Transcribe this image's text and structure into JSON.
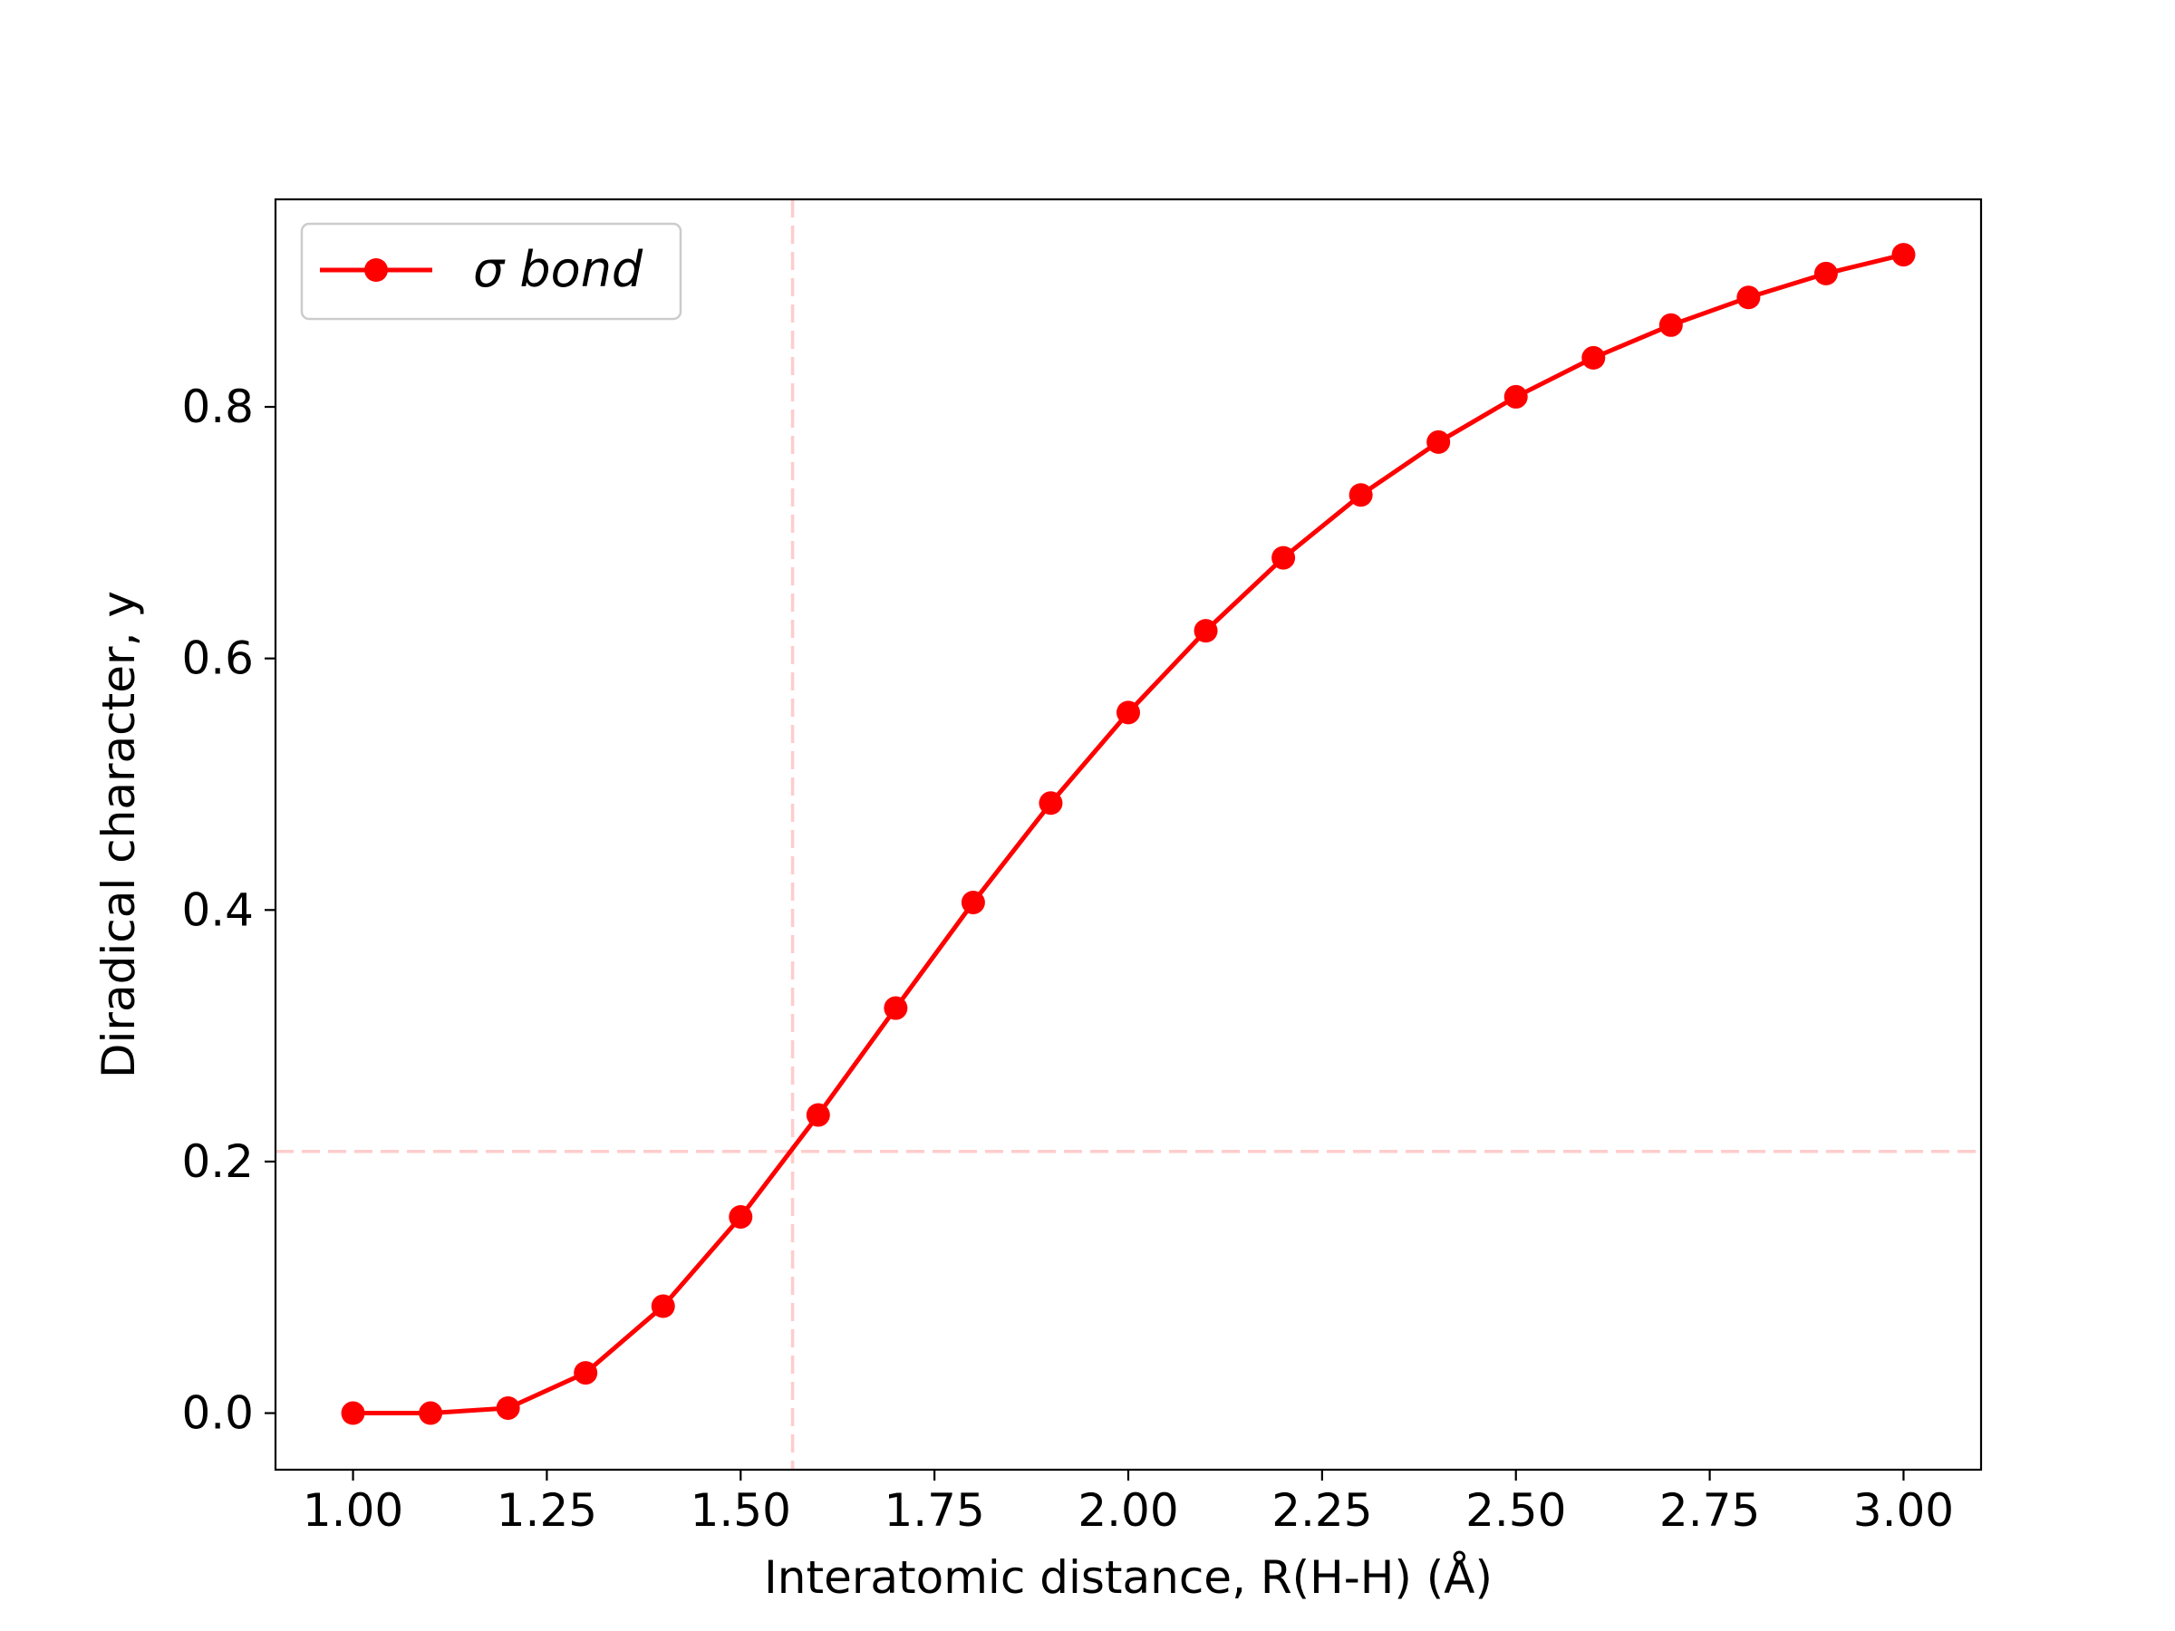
{
  "chart_data": {
    "type": "line",
    "xlabel": "Interatomic distance, R(H-H) (Å)",
    "ylabel": "Diradical character, y",
    "xlim": [
      0.9,
      3.1
    ],
    "ylim": [
      -0.045,
      0.965
    ],
    "x_ticks": [
      1.0,
      1.25,
      1.5,
      1.75,
      2.0,
      2.25,
      2.5,
      2.75,
      3.0
    ],
    "x_tick_labels": [
      "1.00",
      "1.25",
      "1.50",
      "1.75",
      "2.00",
      "2.25",
      "2.50",
      "2.75",
      "3.00"
    ],
    "y_ticks": [
      0.0,
      0.2,
      0.4,
      0.6,
      0.8
    ],
    "y_tick_labels": [
      "0.0",
      "0.2",
      "0.4",
      "0.6",
      "0.8"
    ],
    "grid": false,
    "legend_position": "upper-left",
    "series": [
      {
        "name": "σ bond",
        "color": "#ff0000",
        "marker": "circle",
        "x": [
          1.0,
          1.1,
          1.2,
          1.3,
          1.4,
          1.5,
          1.6,
          1.7,
          1.8,
          1.9,
          2.0,
          2.1,
          2.2,
          2.3,
          2.4,
          2.5,
          2.6,
          2.7,
          2.8,
          2.9,
          3.0
        ],
        "y": [
          0.0,
          0.0,
          0.004,
          0.032,
          0.085,
          0.156,
          0.237,
          0.322,
          0.406,
          0.485,
          0.557,
          0.622,
          0.68,
          0.73,
          0.772,
          0.808,
          0.839,
          0.865,
          0.887,
          0.906,
          0.921
        ]
      }
    ],
    "reference_lines": [
      {
        "orientation": "vertical",
        "value": 1.567,
        "color": "#ffcccc",
        "style": "dashed"
      },
      {
        "orientation": "horizontal",
        "value": 0.208,
        "color": "#ffcccc",
        "style": "dashed"
      }
    ]
  }
}
